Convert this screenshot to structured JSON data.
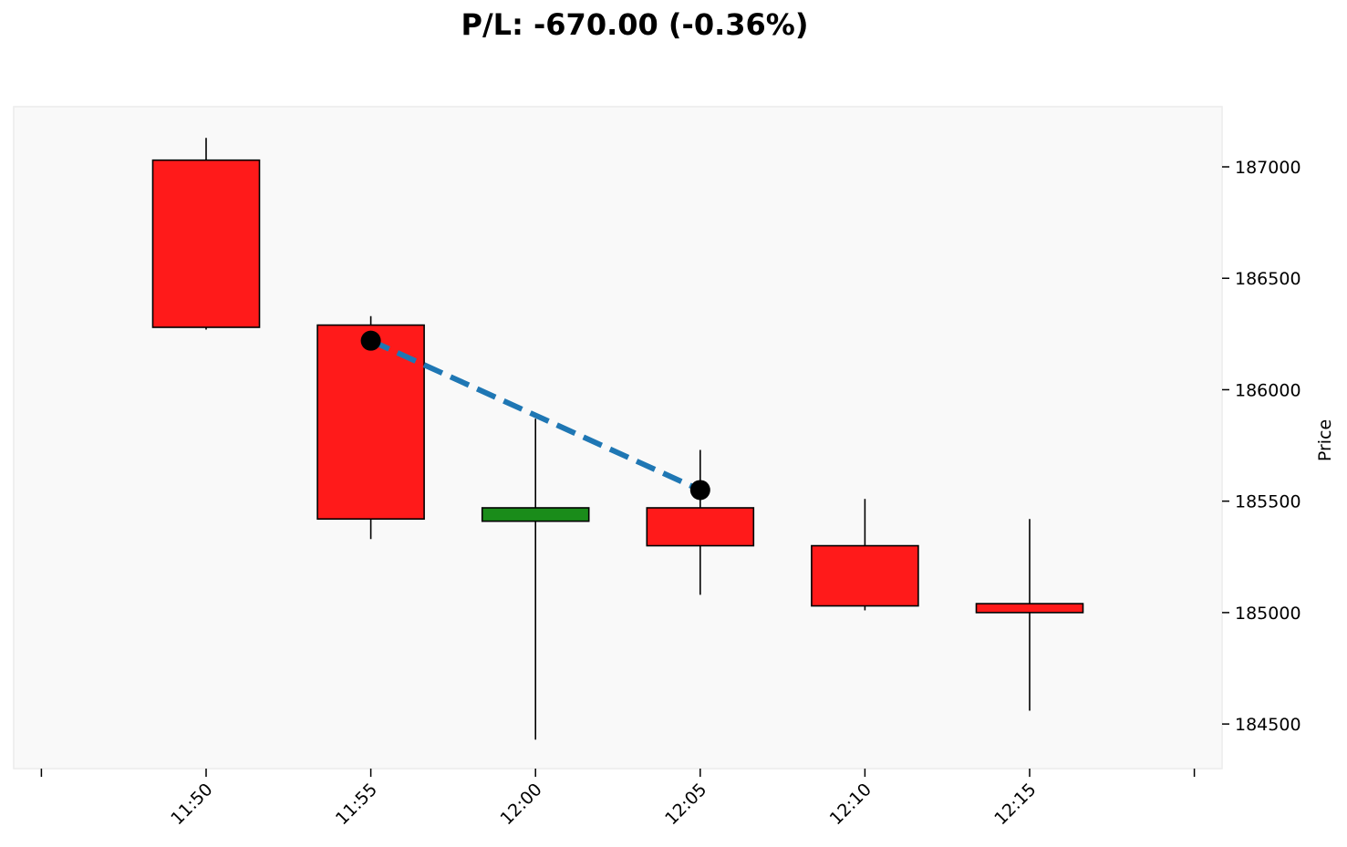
{
  "chart_data": {
    "type": "candlestick",
    "title": "P/L: -670.00 (-0.36%)",
    "ylabel": "Price",
    "xlabel": "",
    "ylim": [
      184300,
      187270
    ],
    "yticks": [
      184500,
      185000,
      185500,
      186000,
      186500,
      187000
    ],
    "x_tick_labels": [
      "11:50",
      "11:55",
      "12:00",
      "12:05",
      "12:10",
      "12:15"
    ],
    "candles": [
      {
        "time": "11:50",
        "open": 187030,
        "high": 187130,
        "low": 186270,
        "close": 186280
      },
      {
        "time": "11:55",
        "open": 186290,
        "high": 186330,
        "low": 185330,
        "close": 185420
      },
      {
        "time": "12:00",
        "open": 185410,
        "high": 185870,
        "low": 184430,
        "close": 185470
      },
      {
        "time": "12:05",
        "open": 185470,
        "high": 185730,
        "low": 185080,
        "close": 185300
      },
      {
        "time": "12:10",
        "open": 185300,
        "high": 185510,
        "low": 185010,
        "close": 185030
      },
      {
        "time": "12:15",
        "open": 185040,
        "high": 185420,
        "low": 184560,
        "close": 185000
      }
    ],
    "trade": {
      "entry": {
        "time": "11:55",
        "price": 186220
      },
      "exit": {
        "time": "12:05",
        "price": 185550
      }
    },
    "colors": {
      "up": "#1a8c1a",
      "down": "#ff1a1a",
      "trade_line": "#1f77b4",
      "marker": "#000000",
      "plot_bg": "#f9f9f9"
    },
    "grid": false,
    "legend": "none"
  }
}
